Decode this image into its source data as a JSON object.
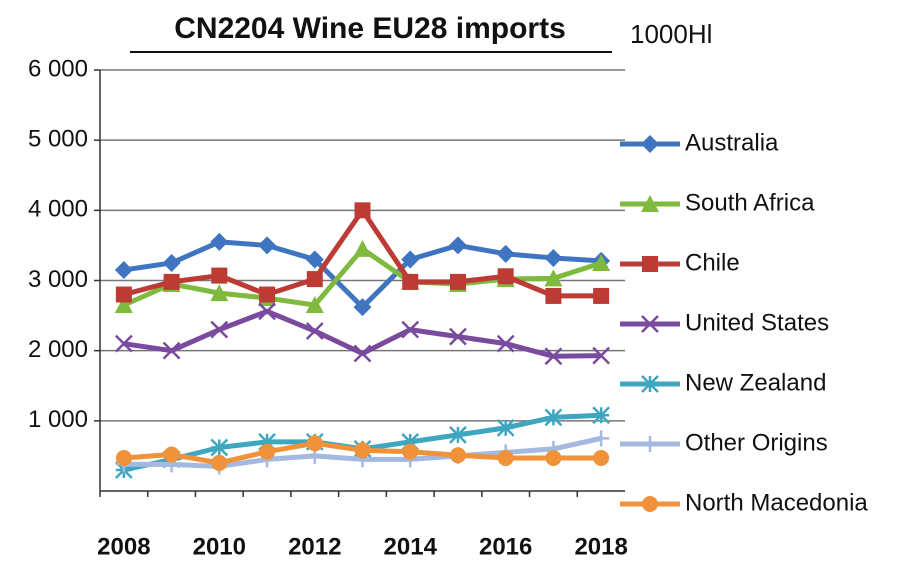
{
  "chart_data": {
    "type": "line",
    "title": "CN2204 Wine EU28 imports",
    "unit_label": "1000Hl",
    "categories": [
      "2008",
      null,
      "2010",
      null,
      "2012",
      null,
      "2014",
      null,
      "2016",
      null,
      "2018"
    ],
    "ylim": [
      0,
      6000
    ],
    "yticks": [
      {
        "value": 1000,
        "label": "1 000"
      },
      {
        "value": 2000,
        "label": "2 000"
      },
      {
        "value": 3000,
        "label": "3 000"
      },
      {
        "value": 4000,
        "label": "4 000"
      },
      {
        "value": 5000,
        "label": "5 000"
      },
      {
        "value": 6000,
        "label": "6 000"
      }
    ],
    "grid": true,
    "legend": "right",
    "series": [
      {
        "name": "Australia",
        "color": "#3f75c0",
        "marker": "diamond",
        "values": [
          3150,
          3250,
          3550,
          3500,
          3300,
          2620,
          3300,
          3500,
          3380,
          3320,
          3280
        ]
      },
      {
        "name": "South Africa",
        "color": "#7fb93e",
        "marker": "triangle",
        "values": [
          2650,
          2950,
          2820,
          2750,
          2650,
          3450,
          2980,
          2950,
          3020,
          3030,
          3250
        ]
      },
      {
        "name": "Chile",
        "color": "#bd3b35",
        "marker": "square",
        "values": [
          2800,
          2980,
          3070,
          2800,
          3020,
          4000,
          2980,
          2980,
          3060,
          2780,
          2780
        ]
      },
      {
        "name": "United States",
        "color": "#7a4a9e",
        "marker": "x",
        "values": [
          2100,
          2000,
          2300,
          2560,
          2280,
          1960,
          2300,
          2200,
          2100,
          1920,
          1930
        ]
      },
      {
        "name": "New Zealand",
        "color": "#3fa6c0",
        "marker": "asterisk",
        "values": [
          300,
          450,
          620,
          700,
          700,
          600,
          700,
          800,
          900,
          1050,
          1080
        ]
      },
      {
        "name": "Other Origins",
        "color": "#a4b8e0",
        "marker": "plus",
        "values": [
          380,
          380,
          350,
          450,
          500,
          450,
          450,
          500,
          550,
          600,
          750
        ]
      },
      {
        "name": "North Macedonia",
        "color": "#f0923a",
        "marker": "circle",
        "values": [
          470,
          520,
          400,
          560,
          680,
          580,
          560,
          510,
          470,
          470,
          470
        ]
      }
    ]
  }
}
